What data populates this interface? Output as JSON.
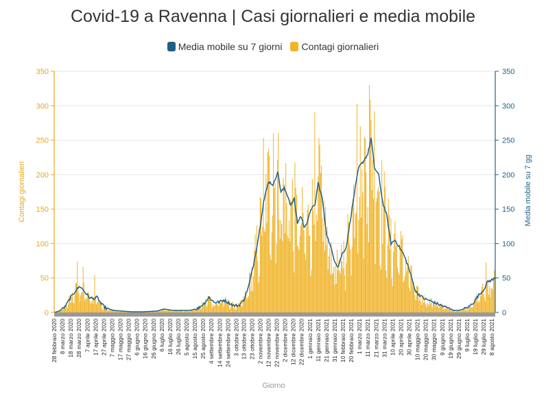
{
  "chart_data": {
    "type": "bar",
    "title": "Covid-19 a Ravenna | Casi giornalieri e media mobile",
    "xlabel": "Giorno",
    "ylabel_left": "Contagi giornalieri",
    "ylabel_right": "Media mobile su 7 gg",
    "ylim": [
      0,
      350
    ],
    "yticks": [
      0,
      50,
      100,
      150,
      200,
      250,
      300,
      350
    ],
    "grid": true,
    "legend_position": "top-center",
    "colors": {
      "bars": "#f0b429",
      "line": "#1f5f86",
      "left_axis": "#e6a817",
      "right_axis": "#1f5f86"
    },
    "series": [
      {
        "name": "Media mobile su 7 giorni",
        "type": "line",
        "axis": "right"
      },
      {
        "name": "Contagi giornalieri",
        "type": "bar",
        "axis": "left"
      }
    ],
    "x_start": "2020-02-28",
    "x_end": "2021-08-14",
    "x_tick_labels": [
      "28 febbraio 2020",
      "8 marzo 2020",
      "18 marzo 2020",
      "28 marzo 2020",
      "7 aprile 2020",
      "17 aprile 2020",
      "27 aprile 2020",
      "7 maggio 2020",
      "17 maggio 2020",
      "27 maggio 2020",
      "6 giugno 2020",
      "16 giugno 2020",
      "26 giugno 2020",
      "6 luglio 2020",
      "16 luglio 2020",
      "26 luglio 2020",
      "5 agosto 2020",
      "15 agosto 2020",
      "25 agosto 2020",
      "4 settembre 2020",
      "14 settembre 2020",
      "24 settembre 2020",
      "3 ottobre 2020",
      "13 ottobre 2020",
      "23 ottobre 2020",
      "2 novembre 2020",
      "12 novembre 2020",
      "22 novembre 2020",
      "2 dicembre 2020",
      "12 dicembre 2020",
      "22 dicembre 2020",
      "1 gennaio 2021",
      "11 gennaio 2021",
      "21 gennaio 2021",
      "31 gennaio 2021",
      "10 febbraio 2021",
      "20 febbraio 2021",
      "1 marzo 2021",
      "11 marzo 2021",
      "21 marzo 2021",
      "31 marzo 2021",
      "10 aprile 2021",
      "20 aprile 2021",
      "30 aprile 2021",
      "10 maggio 2021",
      "20 maggio 2021",
      "30 maggio 2021",
      "9 giugno 2021",
      "19 giugno 2021",
      "29 giugno 2021",
      "9 luglio 2021",
      "19 luglio 2021",
      "29 luglio 2021",
      "8 agosto 2021"
    ],
    "moving_average_points": [
      [
        "2020-02-28",
        0
      ],
      [
        "2020-03-05",
        2
      ],
      [
        "2020-03-12",
        8
      ],
      [
        "2020-03-18",
        20
      ],
      [
        "2020-03-25",
        32
      ],
      [
        "2020-03-30",
        38
      ],
      [
        "2020-04-05",
        30
      ],
      [
        "2020-04-10",
        22
      ],
      [
        "2020-04-15",
        20
      ],
      [
        "2020-04-20",
        22
      ],
      [
        "2020-04-25",
        12
      ],
      [
        "2020-05-01",
        6
      ],
      [
        "2020-05-10",
        3
      ],
      [
        "2020-05-20",
        2
      ],
      [
        "2020-06-01",
        1
      ],
      [
        "2020-06-15",
        1
      ],
      [
        "2020-07-01",
        2
      ],
      [
        "2020-07-10",
        5
      ],
      [
        "2020-07-20",
        3
      ],
      [
        "2020-08-01",
        3
      ],
      [
        "2020-08-10",
        3
      ],
      [
        "2020-08-20",
        6
      ],
      [
        "2020-08-28",
        14
      ],
      [
        "2020-09-02",
        22
      ],
      [
        "2020-09-08",
        15
      ],
      [
        "2020-09-14",
        15
      ],
      [
        "2020-09-20",
        18
      ],
      [
        "2020-09-26",
        14
      ],
      [
        "2020-10-02",
        10
      ],
      [
        "2020-10-08",
        10
      ],
      [
        "2020-10-14",
        18
      ],
      [
        "2020-10-20",
        38
      ],
      [
        "2020-10-26",
        70
      ],
      [
        "2020-11-01",
        110
      ],
      [
        "2020-11-07",
        160
      ],
      [
        "2020-11-13",
        190
      ],
      [
        "2020-11-19",
        185
      ],
      [
        "2020-11-24",
        205
      ],
      [
        "2020-11-28",
        175
      ],
      [
        "2020-12-02",
        180
      ],
      [
        "2020-12-06",
        170
      ],
      [
        "2020-12-10",
        155
      ],
      [
        "2020-12-14",
        165
      ],
      [
        "2020-12-18",
        130
      ],
      [
        "2020-12-22",
        140
      ],
      [
        "2020-12-26",
        125
      ],
      [
        "2020-12-30",
        130
      ],
      [
        "2021-01-03",
        150
      ],
      [
        "2021-01-08",
        155
      ],
      [
        "2021-01-12",
        188
      ],
      [
        "2021-01-17",
        165
      ],
      [
        "2021-01-22",
        115
      ],
      [
        "2021-01-27",
        95
      ],
      [
        "2021-02-01",
        75
      ],
      [
        "2021-02-05",
        66
      ],
      [
        "2021-02-10",
        85
      ],
      [
        "2021-02-15",
        95
      ],
      [
        "2021-02-20",
        135
      ],
      [
        "2021-02-25",
        175
      ],
      [
        "2021-03-02",
        210
      ],
      [
        "2021-03-08",
        220
      ],
      [
        "2021-03-13",
        230
      ],
      [
        "2021-03-17",
        253
      ],
      [
        "2021-03-21",
        210
      ],
      [
        "2021-03-26",
        200
      ],
      [
        "2021-03-31",
        160
      ],
      [
        "2021-04-05",
        140
      ],
      [
        "2021-04-10",
        100
      ],
      [
        "2021-04-15",
        105
      ],
      [
        "2021-04-20",
        95
      ],
      [
        "2021-04-25",
        85
      ],
      [
        "2021-04-30",
        70
      ],
      [
        "2021-05-05",
        50
      ],
      [
        "2021-05-10",
        30
      ],
      [
        "2021-05-15",
        25
      ],
      [
        "2021-05-20",
        20
      ],
      [
        "2021-05-25",
        18
      ],
      [
        "2021-05-31",
        15
      ],
      [
        "2021-06-06",
        12
      ],
      [
        "2021-06-12",
        9
      ],
      [
        "2021-06-19",
        6
      ],
      [
        "2021-06-25",
        3
      ],
      [
        "2021-07-01",
        3
      ],
      [
        "2021-07-07",
        5
      ],
      [
        "2021-07-13",
        8
      ],
      [
        "2021-07-19",
        15
      ],
      [
        "2021-07-25",
        25
      ],
      [
        "2021-07-31",
        33
      ],
      [
        "2021-08-05",
        45
      ],
      [
        "2021-08-10",
        47
      ],
      [
        "2021-08-14",
        50
      ]
    ],
    "notable_daily_peaks": [
      [
        "2020-03-27",
        74
      ],
      [
        "2020-04-03",
        66
      ],
      [
        "2020-04-17",
        54
      ],
      [
        "2020-11-07",
        253
      ],
      [
        "2020-11-19",
        260
      ],
      [
        "2021-01-08",
        291
      ],
      [
        "2021-01-14",
        243
      ],
      [
        "2021-02-28",
        303
      ],
      [
        "2021-03-15",
        330
      ],
      [
        "2021-03-21",
        292
      ],
      [
        "2021-04-15",
        132
      ],
      [
        "2021-08-03",
        73
      ]
    ]
  }
}
